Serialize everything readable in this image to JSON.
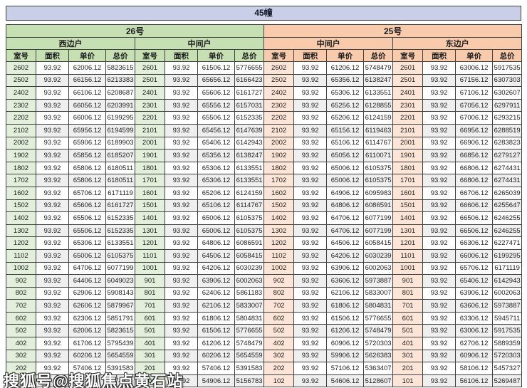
{
  "title": "45幢",
  "watermark": "搜狐号@搜狐焦点黄石站",
  "columns": [
    "室号",
    "面积",
    "单价",
    "总价"
  ],
  "buildings": [
    {
      "name": "26号",
      "theme": "g"
    },
    {
      "name": "25号",
      "theme": "o"
    }
  ],
  "colors": {
    "title_bg": "#c8cfe7",
    "green_header": "#c6e0b4",
    "green_room": "#e2efda",
    "orange_header": "#f8cbad",
    "orange_room": "#fce4d6",
    "alt_row": "#efefef",
    "border": "#3f3f3f"
  },
  "groups": [
    {
      "building": "26号",
      "unit": "西边户",
      "theme": "g",
      "rows": [
        [
          "2602",
          "93.92",
          "62006.12",
          "5823615"
        ],
        [
          "2502",
          "93.92",
          "66156.12",
          "6213383"
        ],
        [
          "2402",
          "93.92",
          "66106.12",
          "6208687"
        ],
        [
          "2302",
          "93.92",
          "66056.12",
          "6203991"
        ],
        [
          "2202",
          "93.92",
          "66006.12",
          "6199295"
        ],
        [
          "2102",
          "93.92",
          "65956.12",
          "6194599"
        ],
        [
          "2002",
          "93.92",
          "65906.12",
          "6189903"
        ],
        [
          "1902",
          "93.92",
          "65856.12",
          "6185207"
        ],
        [
          "1802",
          "93.92",
          "65806.12",
          "6180511"
        ],
        [
          "1702",
          "93.92",
          "65806.12",
          "6180511"
        ],
        [
          "1602",
          "93.92",
          "65706.12",
          "6171119"
        ],
        [
          "1502",
          "93.92",
          "65606.12",
          "6161727"
        ],
        [
          "1402",
          "93.92",
          "65506.12",
          "6152335"
        ],
        [
          "1302",
          "93.92",
          "65506.12",
          "6152335"
        ],
        [
          "1202",
          "93.92",
          "65306.12",
          "6133551"
        ],
        [
          "1102",
          "93.92",
          "65006.12",
          "6105375"
        ],
        [
          "1002",
          "93.92",
          "64706.12",
          "6077199"
        ],
        [
          "902",
          "93.92",
          "64406.12",
          "6049023"
        ],
        [
          "802",
          "93.92",
          "62906.12",
          "5908143"
        ],
        [
          "702",
          "93.92",
          "62606.12",
          "5879967"
        ],
        [
          "602",
          "93.92",
          "62306.12",
          "5851791"
        ],
        [
          "502",
          "93.92",
          "62006.12",
          "5823615"
        ],
        [
          "402",
          "93.92",
          "61706.12",
          "5795439"
        ],
        [
          "302",
          "93.92",
          "60206.12",
          "5654559"
        ],
        [
          "202",
          "93.92",
          "57406.12",
          "5391583"
        ],
        [
          "",
          "",
          "",
          "743"
        ]
      ]
    },
    {
      "building": "26号",
      "unit": "中间户",
      "theme": "g",
      "rows": [
        [
          "2601",
          "93.92",
          "61506.12",
          "5776655"
        ],
        [
          "2501",
          "93.92",
          "65656.12",
          "6166423"
        ],
        [
          "2401",
          "93.92",
          "65606.12",
          "6161727"
        ],
        [
          "2301",
          "93.92",
          "65556.12",
          "6157031"
        ],
        [
          "2201",
          "93.92",
          "65506.12",
          "6152335"
        ],
        [
          "2101",
          "93.92",
          "65456.12",
          "6147639"
        ],
        [
          "2001",
          "93.92",
          "65406.12",
          "6142943"
        ],
        [
          "1901",
          "93.92",
          "65356.12",
          "6138247"
        ],
        [
          "1801",
          "93.92",
          "65306.12",
          "6133551"
        ],
        [
          "1701",
          "93.92",
          "65306.12",
          "6133551"
        ],
        [
          "1601",
          "93.92",
          "65206.12",
          "6124159"
        ],
        [
          "1501",
          "93.92",
          "65106.12",
          "6114767"
        ],
        [
          "1401",
          "93.92",
          "65006.12",
          "6105375"
        ],
        [
          "1301",
          "93.92",
          "65006.12",
          "6105375"
        ],
        [
          "1201",
          "93.92",
          "64806.12",
          "6086591"
        ],
        [
          "1101",
          "93.92",
          "64506.12",
          "6058415"
        ],
        [
          "1001",
          "93.92",
          "64206.12",
          "6030239"
        ],
        [
          "901",
          "93.92",
          "63906.12",
          "6002063"
        ],
        [
          "801",
          "93.92",
          "62406.12",
          "5861183"
        ],
        [
          "701",
          "93.92",
          "62106.12",
          "5833007"
        ],
        [
          "601",
          "93.92",
          "61806.12",
          "5804831"
        ],
        [
          "501",
          "93.92",
          "61506.12",
          "5776655"
        ],
        [
          "401",
          "93.92",
          "61206.12",
          "5748479"
        ],
        [
          "301",
          "93.92",
          "60206.12",
          "5654559"
        ],
        [
          "201",
          "93.92",
          "57406.12",
          "5391583"
        ],
        [
          "101",
          "93.92",
          "54906.12",
          "5156783"
        ]
      ]
    },
    {
      "building": "25号",
      "unit": "中间户",
      "theme": "o",
      "rows": [
        [
          "2602",
          "93.92",
          "61206.12",
          "5748479"
        ],
        [
          "2502",
          "93.92",
          "65356.12",
          "6138247"
        ],
        [
          "2402",
          "93.92",
          "65306.12",
          "6133551"
        ],
        [
          "2302",
          "93.92",
          "65256.12",
          "6128855"
        ],
        [
          "2202",
          "93.92",
          "65206.12",
          "6124159"
        ],
        [
          "2102",
          "93.92",
          "65156.12",
          "6119463"
        ],
        [
          "2002",
          "93.92",
          "65106.12",
          "6114767"
        ],
        [
          "1902",
          "93.92",
          "65056.12",
          "6110071"
        ],
        [
          "1802",
          "93.92",
          "65006.12",
          "6105375"
        ],
        [
          "1702",
          "93.92",
          "65006.12",
          "6105375"
        ],
        [
          "1602",
          "93.92",
          "64906.12",
          "6095983"
        ],
        [
          "1502",
          "93.92",
          "64806.12",
          "6086591"
        ],
        [
          "1402",
          "93.92",
          "64706.12",
          "6077199"
        ],
        [
          "1302",
          "93.92",
          "64706.12",
          "6077199"
        ],
        [
          "1202",
          "93.92",
          "64506.12",
          "6058415"
        ],
        [
          "1102",
          "93.92",
          "64206.12",
          "6030239"
        ],
        [
          "1002",
          "93.92",
          "63906.12",
          "6002063"
        ],
        [
          "902",
          "93.92",
          "63606.12",
          "5973887"
        ],
        [
          "802",
          "93.92",
          "62106.12",
          "5833007"
        ],
        [
          "702",
          "93.92",
          "61806.12",
          "5804831"
        ],
        [
          "602",
          "93.92",
          "61506.12",
          "5776655"
        ],
        [
          "502",
          "93.92",
          "61206.12",
          "5748479"
        ],
        [
          "402",
          "93.92",
          "60906.12",
          "5720303"
        ],
        [
          "302",
          "93.92",
          "59906.12",
          "5626383"
        ],
        [
          "202",
          "93.92",
          "57106.12",
          "5363407"
        ],
        [
          "102",
          "93.92",
          "54606.12",
          "5128607"
        ]
      ]
    },
    {
      "building": "25号",
      "unit": "东边户",
      "theme": "o",
      "rows": [
        [
          "2601",
          "93.92",
          "63006.12",
          "5917535"
        ],
        [
          "2501",
          "93.92",
          "67156.12",
          "6307303"
        ],
        [
          "2401",
          "93.92",
          "67106.12",
          "6302607"
        ],
        [
          "2301",
          "93.92",
          "67056.12",
          "6297911"
        ],
        [
          "2201",
          "93.92",
          "67006.12",
          "6293215"
        ],
        [
          "2101",
          "93.92",
          "66956.12",
          "6288519"
        ],
        [
          "2001",
          "93.92",
          "66906.12",
          "6283823"
        ],
        [
          "1901",
          "93.92",
          "66856.12",
          "6279127"
        ],
        [
          "1801",
          "93.92",
          "66806.12",
          "6274431"
        ],
        [
          "1701",
          "93.92",
          "66806.12",
          "6274431"
        ],
        [
          "1601",
          "93.92",
          "66706.12",
          "6265039"
        ],
        [
          "1501",
          "93.92",
          "66606.12",
          "6255647"
        ],
        [
          "1401",
          "93.92",
          "66506.12",
          "6246255"
        ],
        [
          "1301",
          "93.92",
          "66506.12",
          "6246255"
        ],
        [
          "1201",
          "93.92",
          "66306.12",
          "6227471"
        ],
        [
          "1101",
          "93.92",
          "66006.12",
          "6199295"
        ],
        [
          "1001",
          "93.92",
          "65706.12",
          "6171119"
        ],
        [
          "901",
          "93.92",
          "65406.12",
          "6142943"
        ],
        [
          "801",
          "93.92",
          "63906.12",
          "6002063"
        ],
        [
          "701",
          "93.92",
          "63606.12",
          "5973887"
        ],
        [
          "601",
          "93.92",
          "63306.12",
          "5945711"
        ],
        [
          "501",
          "93.92",
          "63006.12",
          "5917535"
        ],
        [
          "401",
          "93.92",
          "62706.12",
          "5889359"
        ],
        [
          "301",
          "93.92",
          "60906.12",
          "5720303"
        ],
        [
          "201",
          "93.92",
          "58106.12",
          "5457327"
        ],
        [
          "101",
          "93.92",
          "56106.12",
          "5269487"
        ]
      ]
    }
  ]
}
